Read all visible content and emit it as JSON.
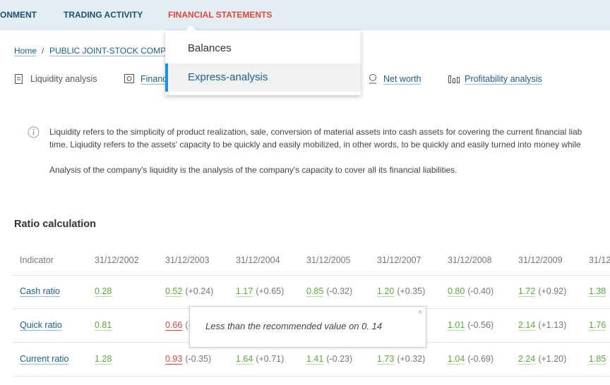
{
  "nav": {
    "items": [
      "ONMENT",
      "TRADING ACTIVITY",
      "FINANCIAL STATEMENTS"
    ]
  },
  "breadcrumb": {
    "items": [
      "Home",
      "PUBLIC JOINT-STOCK COMPA"
    ],
    "separator": "/"
  },
  "tabs": [
    "Liquidity analysis",
    "Financ",
    "Net worth",
    "Profitability analysis"
  ],
  "dropdown": {
    "items": [
      "Balances",
      "Express-analysis"
    ]
  },
  "info": {
    "lines": [
      "Liquidity refers to the simplicity of product realization, sale, conversion of material assets into cash assets for covering the current financial liab",
      "time. Liqiudity refers to the assets' capacity to be quickly and easily mobilized, in other words, to be quickly and easily turned into money while",
      "Analysis of the company's liquidity is the analysis of the company's capacity to cover all its financial liabilities."
    ]
  },
  "section_title": "Ratio calculation",
  "table": {
    "header": [
      "Indicator",
      "31/12/2002",
      "31/12/2003",
      "31/12/2004",
      "31/12/2005",
      "31/12/2007",
      "31/12/2008",
      "31/12/2009",
      "31/12"
    ],
    "warn_color": "#e0463f",
    "rows": [
      {
        "indicator": "Cash ratio",
        "cells": [
          {
            "value": "0.28"
          },
          {
            "value": "0.52",
            "change": "(+0.24)"
          },
          {
            "value": "1.17",
            "change": "(+0.65)"
          },
          {
            "value": "0.85",
            "change": "(-0.32)"
          },
          {
            "value": "1.20",
            "change": "(+0.35)"
          },
          {
            "value": "0.80",
            "change": "(-0.40)"
          },
          {
            "value": "1.72",
            "change": "(+0.92)"
          },
          {
            "value": "1.38"
          }
        ]
      },
      {
        "indicator": "Quick ratio",
        "cells": [
          {
            "value": "0.81"
          },
          {
            "value": "0.66",
            "change": "(-",
            "warn": true
          },
          null,
          null,
          null,
          {
            "value": "1.01",
            "change": "(-0.56)"
          },
          {
            "value": "2.14",
            "change": "(+1.13)"
          },
          {
            "value": "1.76"
          }
        ]
      },
      {
        "indicator": "Current ratio",
        "cells": [
          {
            "value": "1.28"
          },
          {
            "value": "0.93",
            "change": "(-0.35)",
            "warn": true
          },
          {
            "value": "1.64",
            "change": "(+0.71)"
          },
          {
            "value": "1.41",
            "change": "(-0.23)"
          },
          {
            "value": "1.73",
            "change": "(+0.32)"
          },
          {
            "value": "1.04",
            "change": "(-0.69)"
          },
          {
            "value": "2.24",
            "change": "(+1.20)"
          },
          {
            "value": "1.85"
          }
        ]
      }
    ]
  },
  "tooltip": {
    "text": "Less than the recommended value on 0. 14",
    "close": "×"
  }
}
